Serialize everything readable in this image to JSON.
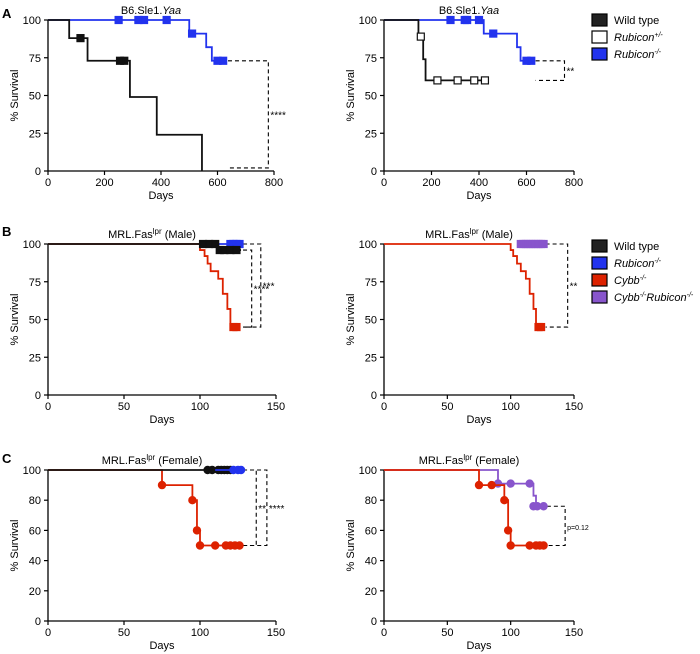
{
  "panels": [
    {
      "letter": "A"
    },
    {
      "letter": "B"
    },
    {
      "letter": "C"
    }
  ],
  "legends": [
    {
      "items": [
        {
          "text": "Wild type",
          "italic": false,
          "fill": "#222222"
        },
        {
          "text": "Rubicon+/-",
          "italic": true,
          "fill": "#ffffff"
        },
        {
          "text": "Rubicon-/-",
          "italic": true,
          "fill": "#2233ee"
        }
      ]
    },
    {
      "items": [
        {
          "text": "Wild type",
          "italic": false,
          "fill": "#222222"
        },
        {
          "text": "Rubicon-/-",
          "italic": true,
          "fill": "#2233ee"
        },
        {
          "text": "Cybb-/-",
          "italic": true,
          "fill": "#dd2200"
        },
        {
          "text": "Cybb-/-Rubicon-/-",
          "italic": true,
          "fill": "#8855cc"
        }
      ]
    }
  ],
  "chart_data": [
    {
      "type": "line",
      "subtype": "kaplan-meier",
      "title": "B6.Sle1.Yaa",
      "xlabel": "Days",
      "ylabel": "% Survival",
      "xlim": [
        0,
        800
      ],
      "ylim": [
        0,
        100
      ],
      "xticks": [
        0,
        200,
        400,
        600,
        800
      ],
      "yticks": [
        0,
        25,
        50,
        75,
        100
      ],
      "marker": "square",
      "series": [
        {
          "name": "Rubicon-/-",
          "color": "#2233ee",
          "fill": "#2233ee",
          "steps": [
            [
              0,
              100
            ],
            [
              500,
              91
            ],
            [
              560,
              82
            ],
            [
              580,
              73
            ],
            [
              630,
              73
            ]
          ],
          "censored": [
            [
              250,
              100
            ],
            [
              320,
              100
            ],
            [
              340,
              100
            ],
            [
              420,
              100
            ],
            [
              510,
              91
            ],
            [
              600,
              73
            ],
            [
              620,
              73
            ]
          ]
        },
        {
          "name": "Wild type",
          "color": "#111111",
          "fill": "#111111",
          "steps": [
            [
              0,
              100
            ],
            [
              75,
              88
            ],
            [
              140,
              73
            ],
            [
              290,
              49
            ],
            [
              385,
              24
            ],
            [
              545,
              0
            ]
          ],
          "censored": [
            [
              115,
              88
            ],
            [
              270,
              73
            ],
            [
              255,
              73
            ]
          ]
        }
      ],
      "brackets": [
        {
          "x": 780,
          "y1": 73,
          "y2": 2,
          "label": "****"
        }
      ]
    },
    {
      "type": "line",
      "subtype": "kaplan-meier",
      "title": "B6.Sle1.Yaa",
      "xlabel": "Days",
      "ylabel": "% Survival",
      "xlim": [
        0,
        800
      ],
      "ylim": [
        0,
        100
      ],
      "xticks": [
        0,
        200,
        400,
        600,
        800
      ],
      "yticks": [
        0,
        25,
        50,
        75,
        100
      ],
      "marker": "square",
      "series": [
        {
          "name": "Rubicon-/-",
          "color": "#2233ee",
          "fill": "#2233ee",
          "steps": [
            [
              0,
              100
            ],
            [
              420,
              91
            ],
            [
              560,
              82
            ],
            [
              575,
              73
            ],
            [
              630,
              73
            ]
          ],
          "censored": [
            [
              280,
              100
            ],
            [
              340,
              100
            ],
            [
              350,
              100
            ],
            [
              400,
              100
            ],
            [
              460,
              91
            ],
            [
              600,
              73
            ],
            [
              620,
              73
            ]
          ]
        },
        {
          "name": "Rubicon+/-",
          "color": "#111111",
          "fill": "#ffffff",
          "steps": [
            [
              0,
              100
            ],
            [
              145,
              89
            ],
            [
              165,
              74
            ],
            [
              175,
              60
            ],
            [
              430,
              60
            ]
          ],
          "censored": [
            [
              155,
              89
            ],
            [
              225,
              60
            ],
            [
              310,
              60
            ],
            [
              380,
              60
            ],
            [
              425,
              60
            ]
          ]
        }
      ],
      "brackets": [
        {
          "x": 760,
          "y1": 73,
          "y2": 60,
          "label": "**"
        }
      ]
    },
    {
      "type": "line",
      "subtype": "kaplan-meier",
      "title": "MRL.Faslpr (Male)",
      "xlabel": "Days",
      "ylabel": "% Survival",
      "xlim": [
        0,
        150
      ],
      "ylim": [
        0,
        100
      ],
      "xticks": [
        0,
        50,
        100,
        150
      ],
      "yticks": [
        0,
        25,
        50,
        75,
        100
      ],
      "marker": "square",
      "series": [
        {
          "name": "Cybb-/-",
          "color": "#dd2200",
          "fill": "#dd2200",
          "steps": [
            [
              0,
              100
            ],
            [
              100,
              96
            ],
            [
              103,
              92
            ],
            [
              105,
              87
            ],
            [
              107,
              82
            ],
            [
              112,
              77
            ],
            [
              115,
              67
            ],
            [
              118,
              57
            ],
            [
              120,
              45
            ],
            [
              125,
              45
            ]
          ],
          "censored": [
            [
              122,
              45
            ],
            [
              124,
              45
            ]
          ]
        },
        {
          "name": "Rubicon-/-",
          "color": "#2233ee",
          "fill": "#2233ee",
          "steps": [
            [
              100,
              100
            ],
            [
              127,
              100
            ]
          ],
          "censored": [
            [
              120,
              100
            ],
            [
              122,
              100
            ],
            [
              124,
              100
            ],
            [
              126,
              100
            ]
          ]
        },
        {
          "name": "Wild type",
          "color": "#111111",
          "fill": "#111111",
          "steps": [
            [
              0,
              100
            ],
            [
              112,
              96
            ],
            [
              127,
              96
            ]
          ],
          "censored": [
            [
              102,
              100
            ],
            [
              106,
              100
            ],
            [
              110,
              100
            ],
            [
              113,
              96
            ],
            [
              116,
              96
            ],
            [
              120,
              96
            ],
            [
              124,
              96
            ]
          ]
        }
      ],
      "brackets": [
        {
          "x": 134,
          "y1": 96,
          "y2": 45,
          "label": "****"
        },
        {
          "x": 140,
          "y1": 100,
          "y2": 45,
          "label": "***"
        }
      ]
    },
    {
      "type": "line",
      "subtype": "kaplan-meier",
      "title": "MRL.Faslpr (Male)",
      "xlabel": "Days",
      "ylabel": "% Survival",
      "xlim": [
        0,
        150
      ],
      "ylim": [
        0,
        100
      ],
      "xticks": [
        0,
        50,
        100,
        150
      ],
      "yticks": [
        0,
        25,
        50,
        75,
        100
      ],
      "marker": "square",
      "series": [
        {
          "name": "Cybb-/-Rubicon-/-",
          "color": "#8855cc",
          "fill": "#8855cc",
          "steps": [
            [
              108,
              100
            ],
            [
              126,
              100
            ]
          ],
          "censored": [
            [
              108,
              100
            ],
            [
              110,
              100
            ],
            [
              112,
              100
            ],
            [
              114,
              100
            ],
            [
              116,
              100
            ],
            [
              118,
              100
            ],
            [
              120,
              100
            ],
            [
              122,
              100
            ],
            [
              124,
              100
            ],
            [
              126,
              100
            ]
          ]
        },
        {
          "name": "Cybb-/-",
          "color": "#dd2200",
          "fill": "#dd2200",
          "steps": [
            [
              0,
              100
            ],
            [
              100,
              96
            ],
            [
              102,
              92
            ],
            [
              105,
              87
            ],
            [
              108,
              82
            ],
            [
              112,
              77
            ],
            [
              115,
              67
            ],
            [
              118,
              57
            ],
            [
              120,
              45
            ],
            [
              125,
              45
            ]
          ],
          "censored": [
            [
              122,
              45
            ],
            [
              124,
              45
            ]
          ]
        }
      ],
      "brackets": [
        {
          "x": 145,
          "y1": 100,
          "y2": 45,
          "label": "**"
        }
      ]
    },
    {
      "type": "line",
      "subtype": "kaplan-meier",
      "title": "MRL.Faslpr (Female)",
      "xlabel": "Days",
      "ylabel": "% Survival",
      "xlim": [
        0,
        150
      ],
      "ylim": [
        0,
        100
      ],
      "xticks": [
        0,
        50,
        100,
        150
      ],
      "yticks": [
        0,
        20,
        40,
        60,
        80,
        100
      ],
      "marker": "circle",
      "series": [
        {
          "name": "Cybb-/-",
          "color": "#dd2200",
          "fill": "#dd2200",
          "steps": [
            [
              0,
              100
            ],
            [
              75,
              90
            ],
            [
              95,
              80
            ],
            [
              98,
              60
            ],
            [
              100,
              50
            ],
            [
              127,
              50
            ]
          ],
          "censored": [
            [
              75,
              90
            ],
            [
              95,
              80
            ],
            [
              98,
              60
            ],
            [
              100,
              50
            ],
            [
              110,
              50
            ],
            [
              117,
              50
            ],
            [
              120,
              50
            ],
            [
              123,
              50
            ],
            [
              126,
              50
            ]
          ]
        },
        {
          "name": "Wild type",
          "color": "#111111",
          "fill": "#111111",
          "steps": [
            [
              0,
              100
            ],
            [
              127,
              100
            ]
          ],
          "censored": [
            [
              105,
              100
            ],
            [
              108,
              100
            ],
            [
              112,
              100
            ],
            [
              114,
              100
            ],
            [
              116,
              100
            ],
            [
              118,
              100
            ],
            [
              120,
              100
            ]
          ]
        },
        {
          "name": "Rubicon-/-",
          "color": "#2233ee",
          "fill": "#2233ee",
          "steps": [
            [
              110,
              100
            ],
            [
              127,
              100
            ]
          ],
          "censored": [
            [
              122,
              100
            ],
            [
              125,
              100
            ],
            [
              127,
              100
            ]
          ]
        }
      ],
      "brackets": [
        {
          "x": 137,
          "y1": 100,
          "y2": 50,
          "label": "**"
        },
        {
          "x": 144,
          "y1": 100,
          "y2": 50,
          "label": "****"
        }
      ]
    },
    {
      "type": "line",
      "subtype": "kaplan-meier",
      "title": "MRL.Faslpr (Female)",
      "xlabel": "Days",
      "ylabel": "% Survival",
      "xlim": [
        0,
        150
      ],
      "ylim": [
        0,
        100
      ],
      "xticks": [
        0,
        50,
        100,
        150
      ],
      "yticks": [
        0,
        20,
        40,
        60,
        80,
        100
      ],
      "marker": "circle",
      "series": [
        {
          "name": "Cybb-/-Rubicon-/-",
          "color": "#8855cc",
          "fill": "#8855cc",
          "steps": [
            [
              0,
              100
            ],
            [
              90,
              91
            ],
            [
              118,
              83
            ],
            [
              120,
              76
            ],
            [
              127,
              76
            ]
          ],
          "censored": [
            [
              90,
              91
            ],
            [
              100,
              91
            ],
            [
              115,
              91
            ],
            [
              118,
              76
            ],
            [
              121,
              76
            ],
            [
              126,
              76
            ]
          ]
        },
        {
          "name": "Cybb-/-",
          "color": "#dd2200",
          "fill": "#dd2200",
          "steps": [
            [
              0,
              100
            ],
            [
              75,
              90
            ],
            [
              95,
              80
            ],
            [
              98,
              60
            ],
            [
              100,
              50
            ],
            [
              127,
              50
            ]
          ],
          "censored": [
            [
              75,
              90
            ],
            [
              85,
              90
            ],
            [
              95,
              80
            ],
            [
              98,
              60
            ],
            [
              100,
              50
            ],
            [
              115,
              50
            ],
            [
              120,
              50
            ],
            [
              123,
              50
            ],
            [
              126,
              50
            ]
          ]
        }
      ],
      "brackets": [
        {
          "x": 143,
          "y1": 76,
          "y2": 50,
          "label": "p=0.12"
        }
      ]
    }
  ]
}
